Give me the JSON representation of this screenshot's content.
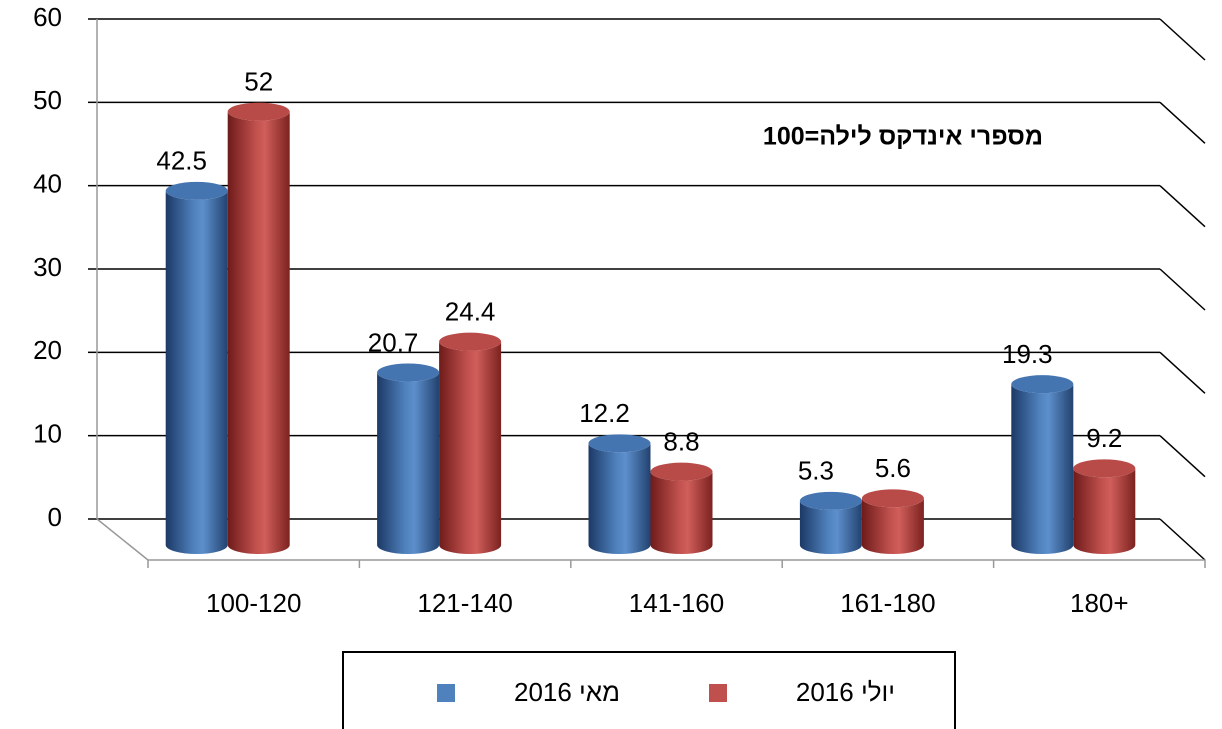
{
  "chart_data": {
    "type": "bar3d",
    "annotation": "מספרי אינדקס לילה=100",
    "categories": [
      "100-120",
      "121-140",
      "141-160",
      "161-180",
      "180+"
    ],
    "series": [
      {
        "name": "מאי 2016",
        "color": "#4f81bd",
        "values": [
          42.5,
          20.7,
          12.2,
          5.3,
          19.3
        ]
      },
      {
        "name": "יולי 2016",
        "color": "#c0504d",
        "values": [
          52,
          24.4,
          8.8,
          5.6,
          9.2
        ]
      }
    ],
    "ylim": [
      0,
      60
    ],
    "yticks": [
      0,
      10,
      20,
      30,
      40,
      50,
      60
    ],
    "grid": true,
    "legend": "bottom"
  }
}
